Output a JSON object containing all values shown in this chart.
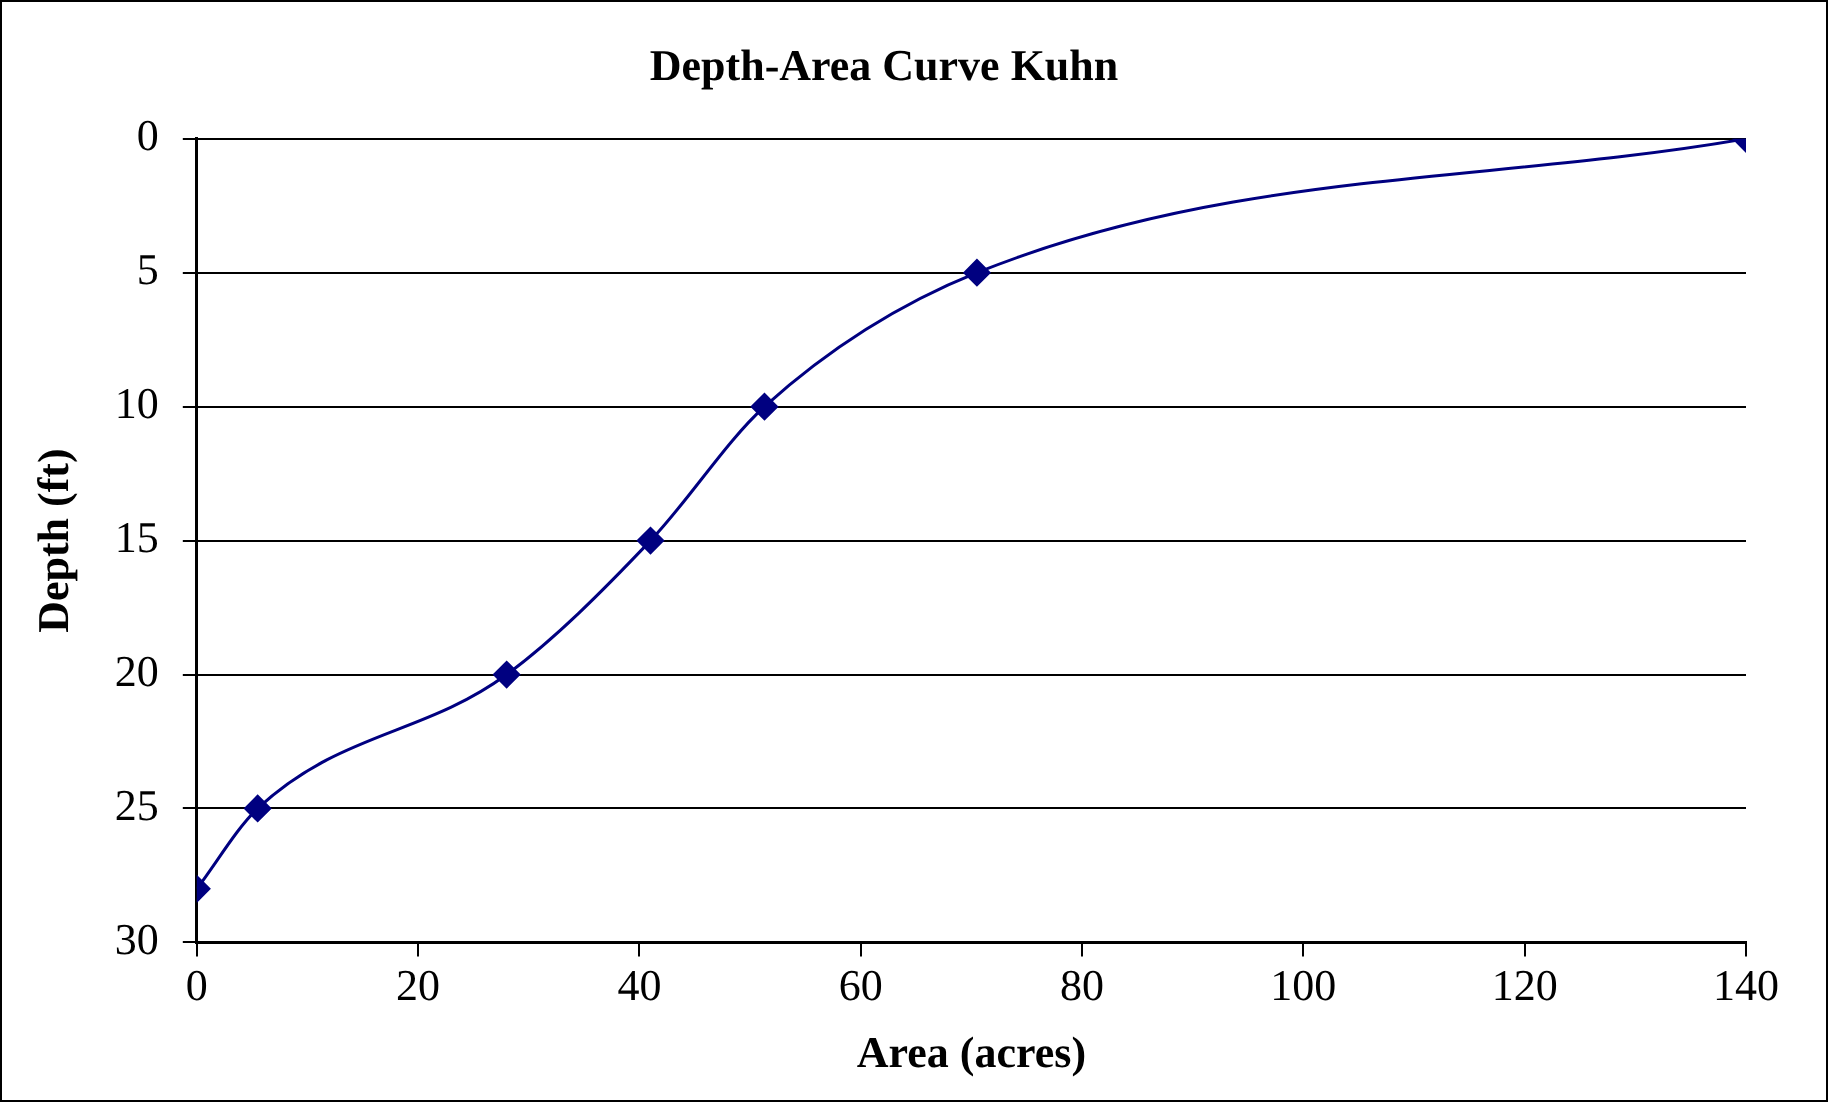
{
  "chart_data": {
    "type": "line",
    "title": "Depth-Area Curve Kuhn",
    "xlabel": "Area (acres)",
    "ylabel": "Depth (ft)",
    "x": [
      0,
      5.5,
      28,
      41,
      51.3,
      70.5,
      140
    ],
    "series": [
      {
        "color": "#000080",
        "values": [
          28,
          25,
          20,
          15,
          10,
          5,
          0
        ]
      }
    ],
    "xlim": [
      0,
      140
    ],
    "xticks": [
      0,
      20,
      40,
      60,
      80,
      100,
      120,
      140
    ],
    "ylim": [
      30,
      0
    ],
    "yticks": [
      0,
      5,
      10,
      15,
      20,
      25,
      30
    ],
    "grid": "y",
    "legend": false,
    "marker": "diamond",
    "line_style": "solid"
  }
}
